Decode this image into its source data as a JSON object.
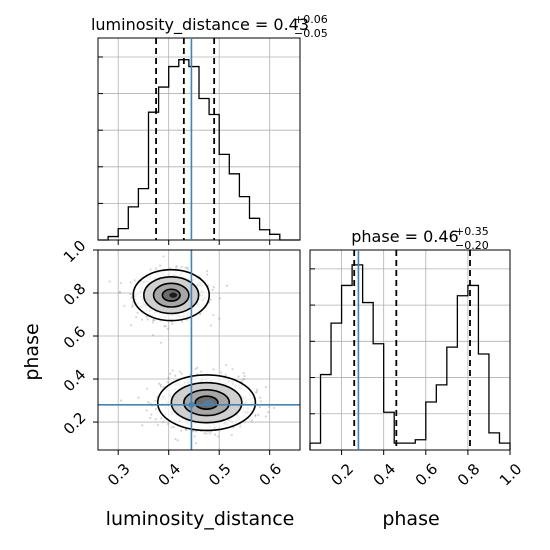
{
  "chart_data": {
    "type": "corner",
    "parameters": [
      "luminosity_distance",
      "phase"
    ],
    "truths": {
      "luminosity_distance": 0.445,
      "phase": 0.28
    },
    "colors": {
      "truth": "#4682b4",
      "hist": "#000000",
      "grid": "#b0b0b0",
      "quantile": "#000000"
    },
    "grid": true,
    "panels": {
      "luminosity_distance_hist": {
        "title": {
          "main": "luminosity_distance = 0.43",
          "sup": "+0.06",
          "sub": "−0.05"
        },
        "xlim": [
          0.26,
          0.66
        ],
        "quantiles": [
          0.375,
          0.43,
          0.49
        ],
        "bin_edges": [
          0.26,
          0.28,
          0.3,
          0.32,
          0.34,
          0.36,
          0.38,
          0.4,
          0.42,
          0.44,
          0.46,
          0.48,
          0.5,
          0.52,
          0.54,
          0.56,
          0.58,
          0.6,
          0.62,
          0.64,
          0.66
        ],
        "counts": [
          0,
          3,
          10,
          29,
          45,
          112,
          134,
          152,
          158,
          152,
          124,
          110,
          75,
          58,
          38,
          19,
          9,
          5,
          0,
          0
        ],
        "ymax": 170
      },
      "phase_hist": {
        "title": {
          "main": "phase = 0.46",
          "sup": "+0.35",
          "sub": "−0.20"
        },
        "xlim": [
          0.05,
          1.0
        ],
        "quantiles": [
          0.26,
          0.46,
          0.81
        ],
        "bin_edges": [
          0.05,
          0.1,
          0.15,
          0.2,
          0.25,
          0.3,
          0.35,
          0.4,
          0.45,
          0.5,
          0.55,
          0.6,
          0.65,
          0.7,
          0.75,
          0.8,
          0.85,
          0.9,
          0.95,
          1.0
        ],
        "counts": [
          10,
          110,
          185,
          240,
          270,
          215,
          155,
          55,
          10,
          10,
          15,
          70,
          95,
          150,
          225,
          240,
          140,
          25,
          10
        ],
        "ymax": 280
      },
      "scatter_2d": {
        "xlim": [
          0.26,
          0.66
        ],
        "ylim": [
          0.07,
          1.0
        ],
        "clusters": [
          {
            "center_x": 0.405,
            "center_y": 0.79,
            "spread_x": 0.035,
            "spread_y": 0.055
          },
          {
            "center_x": 0.475,
            "center_y": 0.29,
            "spread_x": 0.045,
            "spread_y": 0.06
          }
        ]
      }
    },
    "xticks": {
      "luminosity_distance": [
        "0.3",
        "0.4",
        "0.5",
        "0.6"
      ],
      "phase": [
        "0.2",
        "0.4",
        "0.6",
        "0.8",
        "1.0"
      ]
    },
    "yticks": {
      "phase": [
        "0.2",
        "0.4",
        "0.6",
        "0.8",
        "1.0"
      ]
    },
    "xlabels": [
      "luminosity_distance",
      "phase"
    ],
    "ylabel": "phase"
  }
}
